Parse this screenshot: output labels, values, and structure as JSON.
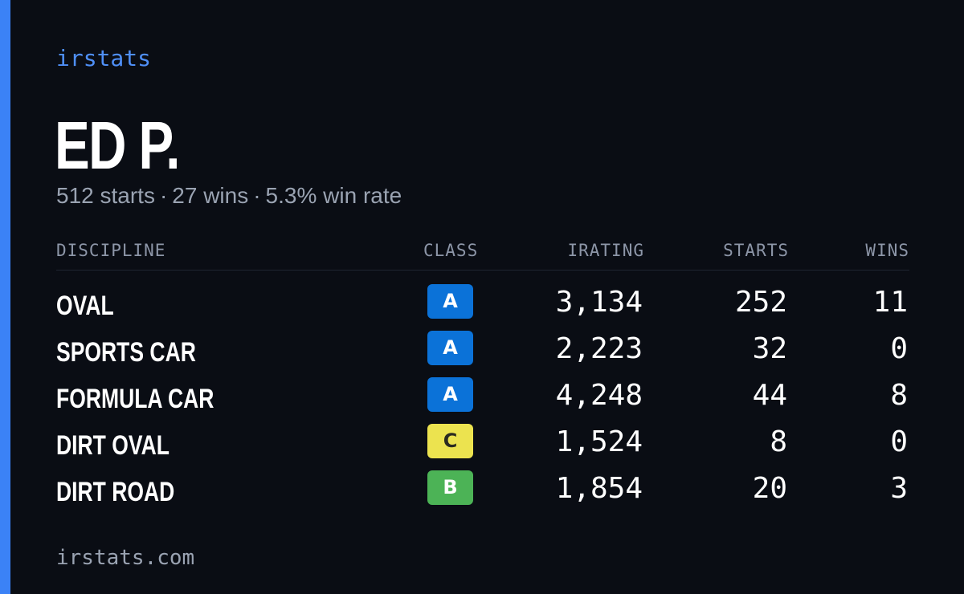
{
  "brand": "irstats",
  "driver": {
    "name": "ED P.",
    "starts_text": "512 starts",
    "wins_text": "27 wins",
    "winrate_text": "5.3% win rate",
    "separator": "·"
  },
  "columns": {
    "discipline": "DISCIPLINE",
    "class": "CLASS",
    "irating": "IRATING",
    "starts": "STARTS",
    "wins": "WINS"
  },
  "rows": [
    {
      "discipline": "OVAL",
      "class": "A",
      "class_color": "#0b72d8",
      "class_text_color": "#ffffff",
      "irating": "3,134",
      "starts": "252",
      "wins": "11"
    },
    {
      "discipline": "SPORTS CAR",
      "class": "A",
      "class_color": "#0b72d8",
      "class_text_color": "#ffffff",
      "irating": "2,223",
      "starts": "32",
      "wins": "0"
    },
    {
      "discipline": "FORMULA CAR",
      "class": "A",
      "class_color": "#0b72d8",
      "class_text_color": "#ffffff",
      "irating": "4,248",
      "starts": "44",
      "wins": "8"
    },
    {
      "discipline": "DIRT OVAL",
      "class": "C",
      "class_color": "#ece34f",
      "class_text_color": "#2a2a20",
      "irating": "1,524",
      "starts": "8",
      "wins": "0"
    },
    {
      "discipline": "DIRT ROAD",
      "class": "B",
      "class_color": "#4cb356",
      "class_text_color": "#ffffff",
      "irating": "1,854",
      "starts": "20",
      "wins": "3"
    }
  ],
  "footer": "irstats.com",
  "colors": {
    "accent": "#3b82f6",
    "background": "#0a0d14"
  }
}
